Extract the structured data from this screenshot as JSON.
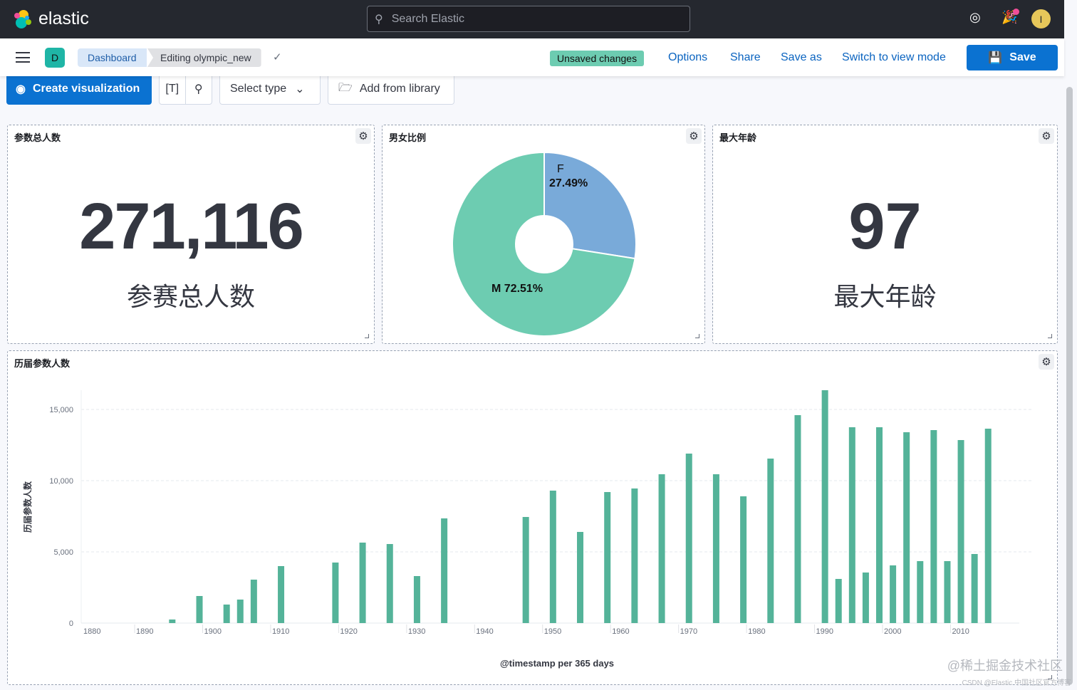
{
  "header": {
    "brand": "elastic",
    "search_placeholder": "Search Elastic",
    "avatar_initial": "I",
    "icons": [
      "help-lifebuoy-icon",
      "newsfeed-party-icon"
    ],
    "newsfeed_dot_color": "#f04e98"
  },
  "nav": {
    "space_initial": "D",
    "breadcrumbs": [
      "Dashboard",
      "Editing olympic_new"
    ],
    "unsaved": "Unsaved changes",
    "links": [
      "Options",
      "Share",
      "Save as",
      "Switch to view mode"
    ],
    "save": "Save"
  },
  "toolbar": {
    "create": "Create visualization",
    "select_type": "Select type",
    "add_library": "Add from library"
  },
  "panels": {
    "total": {
      "title": "参数总人数",
      "value": "271,116",
      "label": "参赛总人数"
    },
    "gender": {
      "title": "男女比例"
    },
    "maxage": {
      "title": "最大年龄",
      "value": "97",
      "label": "最大年龄"
    },
    "history": {
      "title": "历届参数人数"
    }
  },
  "chart_data": [
    {
      "type": "pie",
      "donut": true,
      "slices": [
        {
          "label": "F",
          "value": 27.49,
          "text": "27.49%",
          "color": "#79aad9"
        },
        {
          "label": "M",
          "value": 72.51,
          "text": "M 72.51%",
          "color": "#6dccb1"
        }
      ]
    },
    {
      "type": "bar",
      "xlabel": "@timestamp per 365 days",
      "ylabel": "历届参数人数",
      "color": "#54b399",
      "grid": true,
      "xticks": [
        "1880",
        "1890",
        "1900",
        "1910",
        "1920",
        "1930",
        "1940",
        "1950",
        "1960",
        "1970",
        "1980",
        "1990",
        "2000",
        "2010"
      ],
      "yticks": [
        "0",
        "5,000",
        "10,000",
        "15,000"
      ],
      "ylim": [
        0,
        16500
      ],
      "xlim": [
        1878,
        2020
      ],
      "x": [
        1896,
        1900,
        1904,
        1906,
        1908,
        1912,
        1920,
        1924,
        1928,
        1932,
        1936,
        1948,
        1952,
        1956,
        1960,
        1964,
        1968,
        1972,
        1976,
        1980,
        1984,
        1988,
        1992,
        1994,
        1996,
        1998,
        2000,
        2002,
        2004,
        2006,
        2008,
        2010,
        2012,
        2014,
        2016
      ],
      "values": [
        250,
        1900,
        1300,
        1650,
        3050,
        4000,
        4250,
        5650,
        5550,
        3300,
        7350,
        7450,
        9300,
        6400,
        9200,
        9450,
        10450,
        11900,
        10450,
        8900,
        11550,
        14600,
        16350,
        3100,
        13750,
        3550,
        13750,
        4050,
        13400,
        4350,
        13550,
        4350,
        12850,
        4850,
        13650
      ]
    }
  ],
  "watermark": "@稀土掘金技术社区",
  "watermark2": "CSDN @Elastic 中国社区官方博客"
}
